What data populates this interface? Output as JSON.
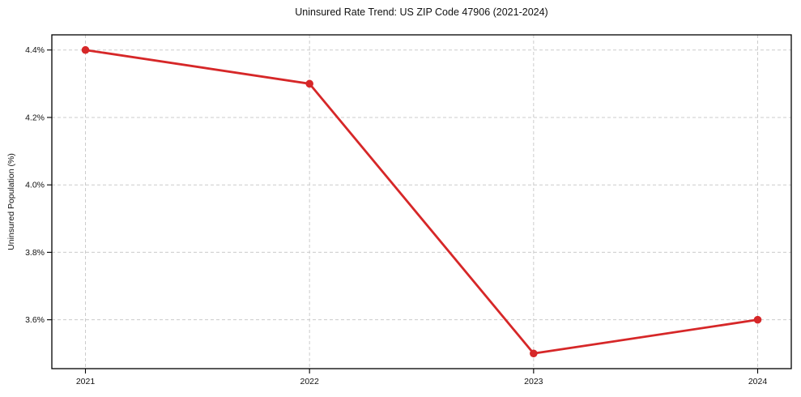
{
  "chart_data": {
    "type": "line",
    "title": "Uninsured Rate Trend: US ZIP Code 47906 (2021-2024)",
    "xlabel": "",
    "ylabel": "Uninsured Population (%)",
    "x": [
      2021,
      2022,
      2023,
      2024
    ],
    "x_tick_labels": [
      "2021",
      "2022",
      "2023",
      "2024"
    ],
    "y_ticks": [
      3.6,
      3.8,
      4.0,
      4.2,
      4.4
    ],
    "y_tick_labels": [
      "3.6%",
      "3.8%",
      "4.0%",
      "4.2%",
      "4.4%"
    ],
    "series": [
      {
        "name": "Uninsured Population (%)",
        "values": [
          4.4,
          4.3,
          3.5,
          3.6
        ],
        "color": "#d62728"
      }
    ],
    "xlim": [
      2020.85,
      2024.15
    ],
    "ylim": [
      3.455,
      4.445
    ],
    "grid": true,
    "grid_style": "dashed",
    "grid_color": "#cccccc",
    "spine_color": "#000000",
    "text_color": "#111111",
    "background_color": "#ffffff",
    "legend": "none",
    "marker": "circle",
    "marker_size": 4.8,
    "line_width": 2.8
  }
}
